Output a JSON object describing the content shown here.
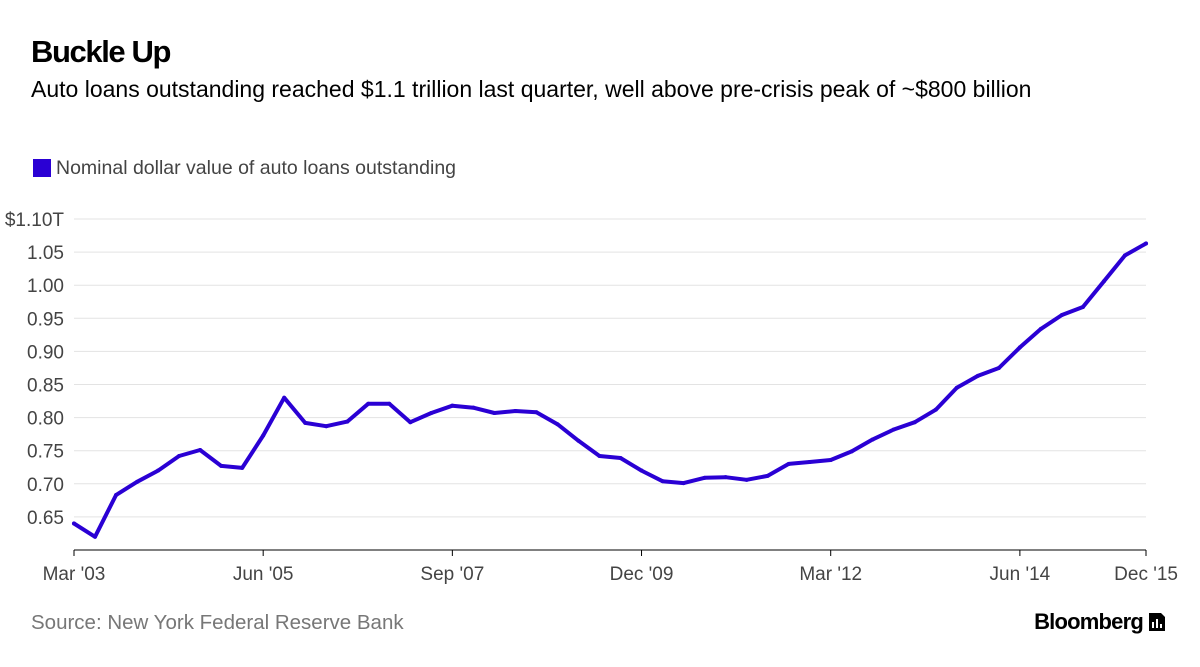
{
  "header": {
    "title": "Buckle Up",
    "subtitle": "Auto loans outstanding reached $1.1 trillion last quarter, well above pre-crisis peak of ~$800 billion"
  },
  "legend": {
    "label": "Nominal dollar value of auto loans outstanding",
    "color": "#2a00d4"
  },
  "footer": {
    "source": "Source: New York Federal Reserve Bank",
    "brand": "Bloomberg",
    "brand_icon": "bloomberg-chart-icon"
  },
  "chart_data": {
    "type": "line",
    "title": "Buckle Up",
    "subtitle": "Auto loans outstanding reached $1.1 trillion last quarter, well above pre-crisis peak of ~$800 billion",
    "xlabel": "",
    "ylabel": "",
    "grid": true,
    "legend_position": "top-left",
    "ylim": [
      0.6,
      1.1
    ],
    "xlim": [
      0,
      51
    ],
    "y_ticks": [
      {
        "value": 1.1,
        "label": "$1.10T"
      },
      {
        "value": 1.05,
        "label": "1.05"
      },
      {
        "value": 1.0,
        "label": "1.00"
      },
      {
        "value": 0.95,
        "label": "0.95"
      },
      {
        "value": 0.9,
        "label": "0.90"
      },
      {
        "value": 0.85,
        "label": "0.85"
      },
      {
        "value": 0.8,
        "label": "0.80"
      },
      {
        "value": 0.75,
        "label": "0.75"
      },
      {
        "value": 0.7,
        "label": "0.70"
      },
      {
        "value": 0.65,
        "label": "0.65"
      }
    ],
    "x_ticks": [
      {
        "index": 0,
        "label": "Mar '03"
      },
      {
        "index": 9,
        "label": "Jun '05"
      },
      {
        "index": 18,
        "label": "Sep '07"
      },
      {
        "index": 27,
        "label": "Dec '09"
      },
      {
        "index": 36,
        "label": "Mar '12"
      },
      {
        "index": 45,
        "label": "Jun '14"
      },
      {
        "index": 51,
        "label": "Dec '15"
      }
    ],
    "series": [
      {
        "name": "Nominal dollar value of auto loans outstanding",
        "color": "#2a00d4",
        "x": [
          "Mar '03",
          "Jun '03",
          "Sep '03",
          "Dec '03",
          "Mar '04",
          "Jun '04",
          "Sep '04",
          "Dec '04",
          "Mar '05",
          "Jun '05",
          "Sep '05",
          "Dec '05",
          "Mar '06",
          "Jun '06",
          "Sep '06",
          "Dec '06",
          "Mar '07",
          "Jun '07",
          "Sep '07",
          "Dec '07",
          "Mar '08",
          "Jun '08",
          "Sep '08",
          "Dec '08",
          "Mar '09",
          "Jun '09",
          "Sep '09",
          "Dec '09",
          "Mar '10",
          "Jun '10",
          "Sep '10",
          "Dec '10",
          "Mar '11",
          "Jun '11",
          "Sep '11",
          "Dec '11",
          "Mar '12",
          "Jun '12",
          "Sep '12",
          "Dec '12",
          "Mar '13",
          "Jun '13",
          "Sep '13",
          "Dec '13",
          "Mar '14",
          "Jun '14",
          "Sep '14",
          "Dec '14",
          "Mar '15",
          "Jun '15",
          "Sep '15",
          "Dec '15"
        ],
        "values": [
          0.64,
          0.62,
          0.683,
          0.703,
          0.72,
          0.742,
          0.751,
          0.727,
          0.724,
          0.773,
          0.83,
          0.792,
          0.787,
          0.794,
          0.821,
          0.821,
          0.793,
          0.807,
          0.818,
          0.815,
          0.807,
          0.81,
          0.808,
          0.79,
          0.765,
          0.742,
          0.739,
          0.72,
          0.704,
          0.701,
          0.709,
          0.71,
          0.706,
          0.712,
          0.73,
          0.733,
          0.736,
          0.749,
          0.767,
          0.782,
          0.793,
          0.812,
          0.845,
          0.863,
          0.875,
          0.906,
          0.934,
          0.955,
          0.967,
          1.006,
          1.045,
          1.063
        ]
      }
    ]
  }
}
